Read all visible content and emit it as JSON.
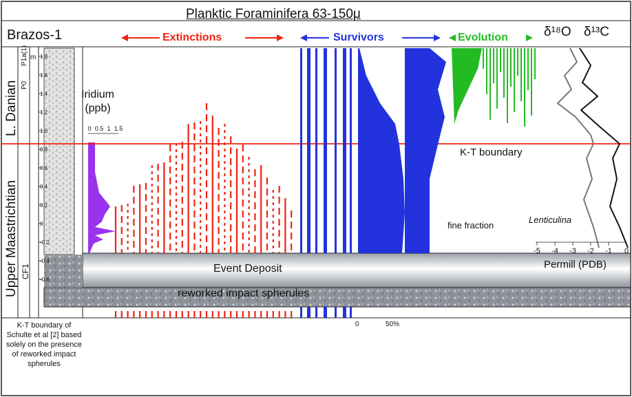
{
  "title": "Planktic Foraminifera 63-150μ",
  "site": "Brazos-1",
  "ages": {
    "lower": "L. Danian",
    "upper": "Upper Maastrichtian"
  },
  "zones": {
    "p1a": "P1a(1)",
    "p0": "P0",
    "cf1": "CF1"
  },
  "depth_unit": "m",
  "depth_ticks": [
    "1.8",
    "1.6",
    "1.4",
    "1.2",
    "1.0",
    "0.8",
    "0.6",
    "0.4",
    "0.2",
    "0",
    "-0.2",
    "-0.4",
    "-0.6"
  ],
  "iridium": {
    "label": "Iridium\n(ppb)",
    "ticks": [
      "0",
      "0.5",
      "1",
      "1.5"
    ]
  },
  "group_labels": {
    "extinctions": "Extinctions",
    "survivors": "Survivors",
    "evolution": "Evolution"
  },
  "isotopes": {
    "o18": "δ¹⁸O",
    "c13": "δ¹³C"
  },
  "boundary_label": "K-T boundary",
  "fine_fraction_label": "fine fraction",
  "lenticulina_label": "Lenticulina",
  "permill_label": "Permill (PDB)",
  "permill_ticks": [
    "-5",
    "-4",
    "-3",
    "-2",
    "-1",
    "0"
  ],
  "event_deposit_label": "Event Deposit",
  "spherules_label": "reworked impact spherules",
  "note": "K-T boundary of Schulte et al [2] based solely on the presence of reworked impact spherules",
  "percent_ticks": {
    "zero": "0",
    "fifty": "50%"
  },
  "colors": {
    "extinctions": "#ee2211",
    "survivors": "#2233dd",
    "evolution": "#22bb22",
    "iridium": "#9933ee",
    "boundary": "#ee2211"
  }
}
